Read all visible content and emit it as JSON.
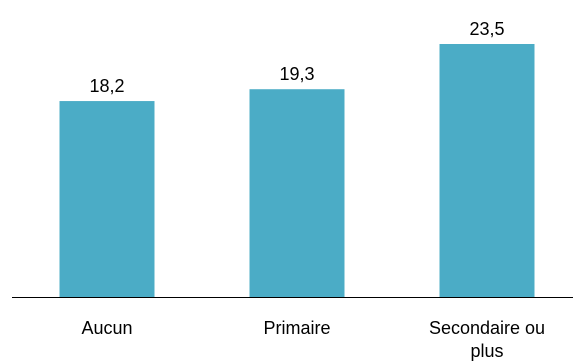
{
  "chart_data": {
    "type": "bar",
    "categories": [
      "Aucun",
      "Primaire",
      "Secondaire ou plus"
    ],
    "category_lines": [
      [
        "Aucun"
      ],
      [
        "Primaire"
      ],
      [
        "Secondaire ou",
        "plus"
      ]
    ],
    "values": [
      18.2,
      19.3,
      23.5
    ],
    "value_labels": [
      "18,2",
      "19,3",
      "23,5"
    ],
    "title": "",
    "xlabel": "",
    "ylabel": "",
    "ylim": [
      0,
      23.5
    ],
    "grid": false,
    "legend": "none",
    "colors": {
      "bar": "#4bacc6",
      "text": "#000000",
      "axis": "#000000"
    }
  }
}
